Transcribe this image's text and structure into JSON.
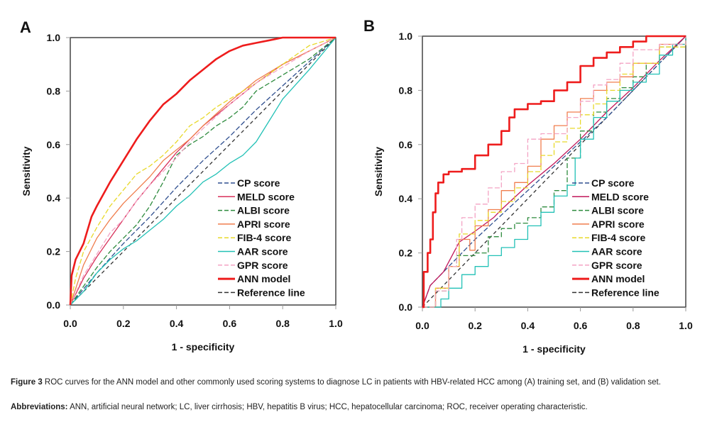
{
  "figure": {
    "caption_label": "Figure 3",
    "caption_text": " ROC curves for the ANN model and other commonly used scoring systems to diagnose LC in patients with HBV-related HCC among (A) training set, and (B) validation set.",
    "abbreviations_label": "Abbreviations:",
    "abbreviations_text": " ANN, artificial neural network; LC, liver cirrhosis; HBV, hepatitis B virus; HCC, hepatocellular carcinoma; ROC, receiver operating characteristic."
  },
  "chart_data": [
    {
      "panel": "A",
      "type": "line",
      "title": "",
      "xlabel": "1 - specificity",
      "ylabel": "Sensitivity",
      "xlim": [
        0,
        1
      ],
      "ylim": [
        0,
        1
      ],
      "xticks": [
        "0.0",
        "0.2",
        "0.4",
        "0.6",
        "0.8",
        "1.0"
      ],
      "yticks": [
        "0.0",
        "0.2",
        "0.4",
        "0.6",
        "0.8",
        "1.0"
      ],
      "grid": false,
      "legend_position": "bottom-right",
      "series": [
        {
          "name": "CP score",
          "color": "#2f4f8f",
          "dash": "dashed",
          "x": [
            0,
            0.1,
            0.2,
            0.3,
            0.4,
            0.5,
            0.6,
            0.7,
            0.8,
            0.9,
            1.0
          ],
          "y": [
            0,
            0.12,
            0.23,
            0.33,
            0.44,
            0.54,
            0.63,
            0.73,
            0.82,
            0.91,
            1.0
          ]
        },
        {
          "name": "MELD score",
          "color": "#d8315b",
          "dash": "solid",
          "x": [
            0,
            0.05,
            0.1,
            0.15,
            0.2,
            0.25,
            0.3,
            0.35,
            0.4,
            0.45,
            0.5,
            0.6,
            0.7,
            0.8,
            0.9,
            1.0
          ],
          "y": [
            0,
            0.1,
            0.18,
            0.25,
            0.32,
            0.39,
            0.45,
            0.51,
            0.57,
            0.62,
            0.67,
            0.75,
            0.83,
            0.9,
            0.95,
            1.0
          ]
        },
        {
          "name": "ALBI score",
          "color": "#2e8b3e",
          "dash": "dashed",
          "x": [
            0,
            0.05,
            0.1,
            0.15,
            0.2,
            0.25,
            0.3,
            0.35,
            0.4,
            0.45,
            0.5,
            0.55,
            0.6,
            0.65,
            0.7,
            0.8,
            0.9,
            1.0
          ],
          "y": [
            0,
            0.07,
            0.14,
            0.2,
            0.25,
            0.3,
            0.37,
            0.46,
            0.56,
            0.6,
            0.63,
            0.67,
            0.7,
            0.74,
            0.8,
            0.86,
            0.92,
            1.0
          ]
        },
        {
          "name": "APRI score",
          "color": "#f07e4e",
          "dash": "solid",
          "x": [
            0,
            0.05,
            0.1,
            0.15,
            0.2,
            0.25,
            0.3,
            0.35,
            0.4,
            0.45,
            0.5,
            0.6,
            0.7,
            0.8,
            0.9,
            1.0
          ],
          "y": [
            0,
            0.15,
            0.25,
            0.32,
            0.38,
            0.43,
            0.48,
            0.54,
            0.58,
            0.62,
            0.67,
            0.76,
            0.84,
            0.9,
            0.95,
            1.0
          ]
        },
        {
          "name": "FIB-4 score",
          "color": "#e8d92a",
          "dash": "dashed",
          "x": [
            0,
            0.02,
            0.05,
            0.1,
            0.15,
            0.2,
            0.25,
            0.3,
            0.35,
            0.4,
            0.45,
            0.5,
            0.55,
            0.6,
            0.7,
            0.8,
            0.9,
            1.0
          ],
          "y": [
            0,
            0.1,
            0.2,
            0.29,
            0.37,
            0.43,
            0.49,
            0.52,
            0.56,
            0.61,
            0.67,
            0.7,
            0.74,
            0.77,
            0.83,
            0.9,
            0.97,
            1.0
          ]
        },
        {
          "name": "AAR score",
          "color": "#22c1b6",
          "dash": "solid",
          "x": [
            0,
            0.05,
            0.1,
            0.15,
            0.2,
            0.25,
            0.3,
            0.35,
            0.4,
            0.45,
            0.5,
            0.55,
            0.6,
            0.65,
            0.7,
            0.75,
            0.8,
            0.9,
            1.0
          ],
          "y": [
            0,
            0.05,
            0.12,
            0.17,
            0.21,
            0.24,
            0.28,
            0.32,
            0.37,
            0.41,
            0.46,
            0.49,
            0.53,
            0.56,
            0.61,
            0.69,
            0.77,
            0.88,
            1.0
          ]
        },
        {
          "name": "GPR score",
          "color": "#f4a3c4",
          "dash": "dashed",
          "x": [
            0,
            0.05,
            0.1,
            0.15,
            0.2,
            0.25,
            0.3,
            0.35,
            0.4,
            0.45,
            0.5,
            0.6,
            0.7,
            0.8,
            0.9,
            1.0
          ],
          "y": [
            0,
            0.11,
            0.19,
            0.27,
            0.32,
            0.39,
            0.45,
            0.5,
            0.55,
            0.61,
            0.66,
            0.75,
            0.83,
            0.89,
            0.95,
            1.0
          ]
        },
        {
          "name": "ANN model",
          "color": "#ee1c1c",
          "dash": "solid",
          "x": [
            0,
            0.005,
            0.02,
            0.05,
            0.08,
            0.1,
            0.15,
            0.2,
            0.25,
            0.3,
            0.35,
            0.4,
            0.45,
            0.5,
            0.55,
            0.6,
            0.65,
            0.7,
            0.75,
            0.8,
            0.9,
            1.0
          ],
          "y": [
            0,
            0.11,
            0.17,
            0.23,
            0.33,
            0.37,
            0.46,
            0.54,
            0.62,
            0.69,
            0.75,
            0.79,
            0.84,
            0.88,
            0.92,
            0.95,
            0.97,
            0.98,
            0.99,
            1.0,
            1.0,
            1.0
          ]
        },
        {
          "name": "Reference line",
          "color": "#333333",
          "dash": "dashed",
          "x": [
            0,
            1
          ],
          "y": [
            0,
            1
          ]
        }
      ]
    },
    {
      "panel": "B",
      "type": "line",
      "title": "",
      "xlabel": "1 - specificity",
      "ylabel": "Sensitivity",
      "xlim": [
        0,
        1
      ],
      "ylim": [
        0,
        1
      ],
      "xticks": [
        "0.0",
        "0.2",
        "0.4",
        "0.6",
        "0.8",
        "1.0"
      ],
      "yticks": [
        "0.0",
        "0.2",
        "0.4",
        "0.6",
        "0.8",
        "1.0"
      ],
      "grid": false,
      "legend_position": "bottom-right",
      "series": [
        {
          "name": "CP score",
          "color": "#2f4f8f",
          "dash": "dashed",
          "x": [
            0,
            0.03,
            0.1,
            0.2,
            0.3,
            0.4,
            0.5,
            0.6,
            0.7,
            0.8,
            0.9,
            1.0
          ],
          "y": [
            0,
            0.08,
            0.15,
            0.25,
            0.34,
            0.43,
            0.52,
            0.61,
            0.7,
            0.8,
            0.9,
            1.0
          ]
        },
        {
          "name": "MELD score",
          "color": "#c2185b",
          "dash": "solid",
          "x": [
            0,
            0.03,
            0.08,
            0.14,
            0.2,
            0.27,
            0.3,
            0.4,
            0.5,
            0.6,
            0.7,
            0.8,
            0.9,
            1.0
          ],
          "y": [
            0,
            0.08,
            0.13,
            0.24,
            0.28,
            0.33,
            0.36,
            0.45,
            0.53,
            0.62,
            0.72,
            0.81,
            0.91,
            1.0
          ]
        },
        {
          "name": "ALBI score",
          "color": "#2e8b3e",
          "dash": "dashed",
          "x": [
            0,
            0.05,
            0.1,
            0.13,
            0.2,
            0.25,
            0.3,
            0.35,
            0.4,
            0.45,
            0.5,
            0.55,
            0.6,
            0.65,
            0.7,
            0.75,
            0.8,
            0.85,
            0.9,
            1.0
          ],
          "y": [
            0,
            0.06,
            0.15,
            0.19,
            0.2,
            0.26,
            0.29,
            0.31,
            0.33,
            0.37,
            0.43,
            0.55,
            0.65,
            0.72,
            0.77,
            0.81,
            0.85,
            0.9,
            0.96,
            1.0
          ]
        },
        {
          "name": "APRI score",
          "color": "#f07e4e",
          "dash": "solid",
          "x": [
            0,
            0.05,
            0.1,
            0.14,
            0.18,
            0.2,
            0.25,
            0.3,
            0.35,
            0.4,
            0.45,
            0.5,
            0.55,
            0.6,
            0.65,
            0.7,
            0.75,
            0.8,
            0.9,
            1.0
          ],
          "y": [
            0,
            0.07,
            0.15,
            0.25,
            0.21,
            0.3,
            0.36,
            0.43,
            0.46,
            0.52,
            0.62,
            0.67,
            0.72,
            0.77,
            0.8,
            0.83,
            0.85,
            0.9,
            0.97,
            1.0
          ]
        },
        {
          "name": "FIB-4 score",
          "color": "#e8d92a",
          "dash": "dashed",
          "x": [
            0,
            0.05,
            0.1,
            0.14,
            0.2,
            0.25,
            0.3,
            0.35,
            0.4,
            0.45,
            0.5,
            0.55,
            0.6,
            0.65,
            0.7,
            0.75,
            0.8,
            0.9,
            1.0
          ],
          "y": [
            0,
            0.07,
            0.15,
            0.27,
            0.32,
            0.35,
            0.39,
            0.44,
            0.5,
            0.56,
            0.61,
            0.66,
            0.71,
            0.75,
            0.8,
            0.86,
            0.9,
            0.96,
            1.0
          ]
        },
        {
          "name": "AAR score",
          "color": "#22c1b6",
          "dash": "solid",
          "x": [
            0,
            0.04,
            0.07,
            0.1,
            0.15,
            0.2,
            0.25,
            0.3,
            0.35,
            0.4,
            0.45,
            0.5,
            0.55,
            0.58,
            0.6,
            0.65,
            0.7,
            0.75,
            0.8,
            0.85,
            0.9,
            0.95,
            1.0
          ],
          "y": [
            0,
            0.0,
            0.03,
            0.07,
            0.12,
            0.15,
            0.19,
            0.22,
            0.25,
            0.3,
            0.35,
            0.41,
            0.45,
            0.55,
            0.62,
            0.7,
            0.76,
            0.8,
            0.83,
            0.86,
            0.93,
            0.97,
            1.0
          ]
        },
        {
          "name": "GPR score",
          "color": "#f4a3c4",
          "dash": "dashed",
          "x": [
            0,
            0.05,
            0.1,
            0.13,
            0.15,
            0.2,
            0.25,
            0.3,
            0.35,
            0.4,
            0.45,
            0.5,
            0.55,
            0.6,
            0.65,
            0.7,
            0.75,
            0.8,
            0.9,
            1.0
          ],
          "y": [
            0,
            0.06,
            0.15,
            0.25,
            0.33,
            0.38,
            0.44,
            0.5,
            0.53,
            0.62,
            0.64,
            0.64,
            0.7,
            0.76,
            0.82,
            0.84,
            0.9,
            0.95,
            0.97,
            1.0
          ]
        },
        {
          "name": "ANN model",
          "color": "#ee1c1c",
          "dash": "solid",
          "x": [
            0,
            0.005,
            0.02,
            0.03,
            0.04,
            0.05,
            0.06,
            0.08,
            0.1,
            0.15,
            0.2,
            0.25,
            0.3,
            0.33,
            0.35,
            0.4,
            0.45,
            0.5,
            0.55,
            0.6,
            0.65,
            0.7,
            0.75,
            0.8,
            0.85,
            0.9,
            1.0
          ],
          "y": [
            0,
            0.13,
            0.2,
            0.25,
            0.35,
            0.42,
            0.46,
            0.49,
            0.5,
            0.51,
            0.56,
            0.6,
            0.65,
            0.7,
            0.73,
            0.75,
            0.76,
            0.8,
            0.83,
            0.89,
            0.92,
            0.94,
            0.96,
            0.98,
            1.0,
            1.0,
            1.0
          ]
        },
        {
          "name": "Reference line",
          "color": "#333333",
          "dash": "dashed",
          "x": [
            0,
            1
          ],
          "y": [
            0,
            1
          ]
        }
      ]
    }
  ]
}
